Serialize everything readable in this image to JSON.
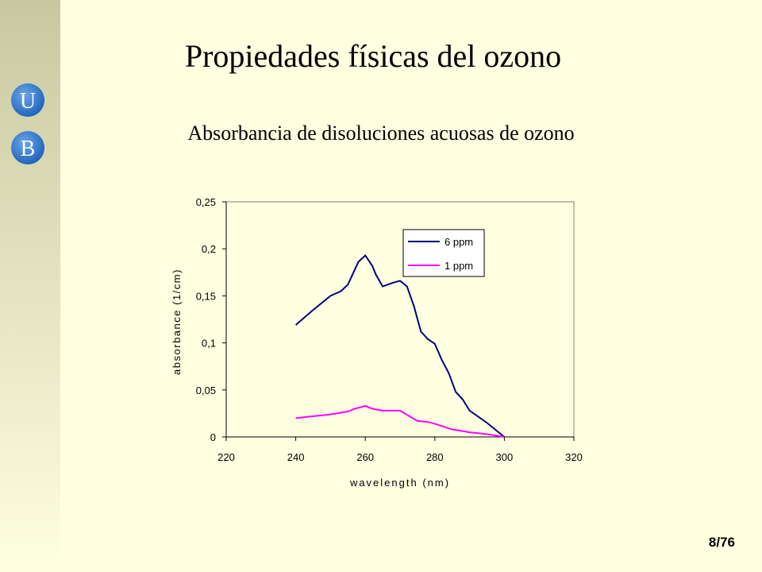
{
  "slide": {
    "title": "Propiedades físicas del ozono",
    "subtitle": "Absorbancia de disoluciones acuosas de ozono",
    "logo": [
      "U",
      "B"
    ],
    "page": "8/76"
  },
  "chart_data": {
    "type": "line",
    "xlabel": "wavelength (nm)",
    "ylabel": "absorbance (1/cm)",
    "xlim": [
      220,
      320
    ],
    "xticks": [
      220,
      240,
      260,
      280,
      300,
      320
    ],
    "ylim": [
      0,
      0.25
    ],
    "yticks": [
      0,
      {
        "value": 0.05,
        "label": "0,05"
      },
      {
        "value": 0.1,
        "label": "0,1"
      },
      {
        "value": 0.15,
        "label": "0,15"
      },
      {
        "value": 0.2,
        "label": "0,2"
      },
      {
        "value": 0.25,
        "label": "0,25"
      }
    ],
    "grid": false,
    "legend": "upper right",
    "series": [
      {
        "name": "6 ppm",
        "color": "#000080",
        "x": [
          240,
          245,
          250,
          253,
          255,
          258,
          260,
          262,
          263,
          265,
          268,
          270,
          272,
          274,
          276,
          278,
          280,
          282,
          284,
          286,
          288,
          290,
          295,
          300
        ],
        "values": [
          0.119,
          0.135,
          0.15,
          0.155,
          0.162,
          0.186,
          0.193,
          0.182,
          0.173,
          0.16,
          0.164,
          0.166,
          0.16,
          0.139,
          0.112,
          0.104,
          0.099,
          0.082,
          0.068,
          0.048,
          0.04,
          0.028,
          0.015,
          0
        ]
      },
      {
        "name": "1 ppm",
        "color": "#ff00ff",
        "x": [
          240,
          250,
          255,
          257,
          260,
          262,
          265,
          270,
          275,
          278,
          280,
          285,
          290,
          295,
          300
        ],
        "values": [
          0.02,
          0.024,
          0.027,
          0.03,
          0.033,
          0.03,
          0.028,
          0.028,
          0.017,
          0.016,
          0.014,
          0.008,
          0.005,
          0.003,
          0
        ]
      }
    ]
  }
}
